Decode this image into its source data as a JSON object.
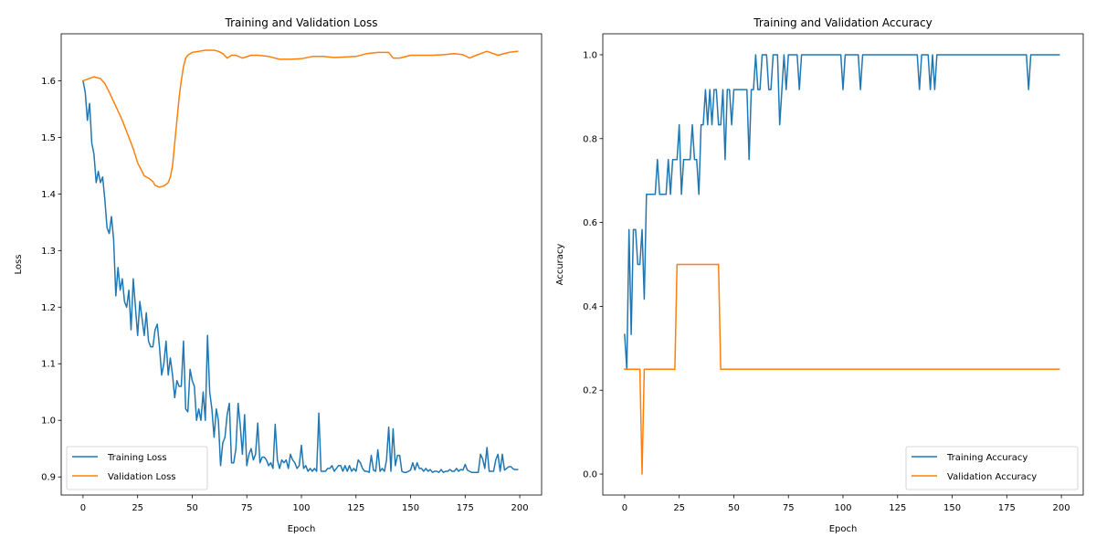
{
  "chart_data": [
    {
      "type": "line",
      "title": "Training and Validation Loss",
      "xlabel": "Epoch",
      "ylabel": "Loss",
      "xlim": [
        -10,
        210
      ],
      "ylim": [
        0.868,
        1.683
      ],
      "xticks": [
        0,
        25,
        50,
        75,
        100,
        125,
        150,
        175,
        200
      ],
      "yticks": [
        0.9,
        1.0,
        1.1,
        1.2,
        1.3,
        1.4,
        1.5,
        1.6
      ],
      "ytick_labels": [
        "0.9",
        "1.0",
        "1.1",
        "1.2",
        "1.3",
        "1.4",
        "1.5",
        "1.6"
      ],
      "grid": false,
      "legend_position": "lower-left",
      "series": [
        {
          "name": "Training Loss",
          "color": "#1f77b4",
          "values": [
            1.6,
            1.58,
            1.53,
            1.56,
            1.49,
            1.47,
            1.42,
            1.44,
            1.42,
            1.43,
            1.39,
            1.34,
            1.33,
            1.36,
            1.32,
            1.22,
            1.27,
            1.23,
            1.25,
            1.21,
            1.2,
            1.23,
            1.16,
            1.25,
            1.2,
            1.15,
            1.21,
            1.18,
            1.15,
            1.19,
            1.14,
            1.13,
            1.13,
            1.16,
            1.17,
            1.13,
            1.08,
            1.1,
            1.14,
            1.08,
            1.11,
            1.08,
            1.04,
            1.07,
            1.06,
            1.06,
            1.14,
            1.02,
            1.015,
            1.09,
            1.07,
            1.06,
            1.0,
            1.02,
            1.0,
            1.05,
            1.0,
            1.15,
            1.05,
            1.02,
            0.97,
            1.02,
            1.0,
            0.92,
            0.96,
            0.97,
            1.01,
            1.03,
            0.925,
            0.925,
            0.95,
            1.03,
            0.99,
            0.94,
            1.01,
            0.92,
            0.94,
            0.95,
            0.93,
            0.94,
            0.995,
            0.925,
            0.935,
            0.935,
            0.93,
            0.92,
            0.925,
            0.915,
            0.993,
            0.93,
            0.915,
            0.93,
            0.925,
            0.93,
            0.915,
            0.94,
            0.93,
            0.925,
            0.915,
            0.92,
            0.956,
            0.915,
            0.92,
            0.91,
            0.915,
            0.91,
            0.915,
            0.91,
            1.013,
            0.91,
            0.91,
            0.91,
            0.915,
            0.915,
            0.92,
            0.91,
            0.915,
            0.92,
            0.92,
            0.91,
            0.92,
            0.91,
            0.92,
            0.91,
            0.915,
            0.91,
            0.93,
            0.925,
            0.915,
            0.91,
            0.91,
            0.908,
            0.938,
            0.912,
            0.91,
            0.948,
            0.91,
            0.915,
            0.91,
            0.93,
            0.988,
            0.91,
            0.985,
            0.92,
            0.938,
            0.938,
            0.91,
            0.908,
            0.908,
            0.91,
            0.912,
            0.925,
            0.912,
            0.925,
            0.915,
            0.915,
            0.91,
            0.915,
            0.91,
            0.913,
            0.908,
            0.91,
            0.91,
            0.908,
            0.913,
            0.908,
            0.91,
            0.91,
            0.913,
            0.91,
            0.91,
            0.915,
            0.91,
            0.913,
            0.912,
            0.922,
            0.912,
            0.91,
            0.908,
            0.908,
            0.908,
            0.908,
            0.94,
            0.932,
            0.915,
            0.952,
            0.91,
            0.91,
            0.91,
            0.93,
            0.94,
            0.91,
            0.94,
            0.912,
            0.915,
            0.918,
            0.918,
            0.914,
            0.913,
            0.913
          ]
        },
        {
          "name": "Validation Loss",
          "color": "#ff7f0e",
          "x": [
            0,
            5,
            8,
            10,
            12,
            15,
            18,
            20,
            23,
            25,
            27,
            28,
            30,
            32,
            33,
            35,
            37,
            39,
            40,
            41,
            42,
            43,
            44,
            45,
            46,
            47,
            48,
            50,
            53,
            56,
            60,
            62,
            64,
            66,
            68,
            70,
            73,
            77,
            80,
            85,
            90,
            95,
            100,
            105,
            110,
            115,
            120,
            125,
            130,
            135,
            140,
            142,
            145,
            150,
            155,
            160,
            165,
            170,
            174,
            177,
            180,
            185,
            190,
            195,
            199
          ],
          "values": [
            1.6,
            1.607,
            1.604,
            1.595,
            1.58,
            1.555,
            1.53,
            1.51,
            1.48,
            1.455,
            1.44,
            1.432,
            1.428,
            1.422,
            1.415,
            1.412,
            1.414,
            1.42,
            1.43,
            1.45,
            1.49,
            1.53,
            1.57,
            1.6,
            1.625,
            1.64,
            1.645,
            1.65,
            1.652,
            1.654,
            1.654,
            1.652,
            1.648,
            1.64,
            1.645,
            1.645,
            1.64,
            1.645,
            1.645,
            1.643,
            1.638,
            1.638,
            1.639,
            1.643,
            1.643,
            1.641,
            1.642,
            1.643,
            1.648,
            1.65,
            1.65,
            1.64,
            1.64,
            1.645,
            1.645,
            1.645,
            1.646,
            1.648,
            1.646,
            1.64,
            1.645,
            1.652,
            1.645,
            1.65,
            1.652
          ]
        }
      ]
    },
    {
      "type": "line",
      "title": "Training and Validation Accuracy",
      "xlabel": "Epoch",
      "ylabel": "Accuracy",
      "xlim": [
        -10,
        210
      ],
      "ylim": [
        -0.05,
        1.05
      ],
      "xticks": [
        0,
        25,
        50,
        75,
        100,
        125,
        150,
        175,
        200
      ],
      "yticks": [
        0.0,
        0.2,
        0.4,
        0.6,
        0.8,
        1.0
      ],
      "ytick_labels": [
        "0.0",
        "0.2",
        "0.4",
        "0.6",
        "0.8",
        "1.0"
      ],
      "grid": false,
      "legend_position": "lower-right",
      "series": [
        {
          "name": "Training Accuracy",
          "color": "#1f77b4",
          "values": [
            0.333,
            0.25,
            0.583,
            0.333,
            0.583,
            0.583,
            0.5,
            0.5,
            0.583,
            0.417,
            0.667,
            0.667,
            0.667,
            0.667,
            0.667,
            0.75,
            0.667,
            0.667,
            0.667,
            0.667,
            0.75,
            0.667,
            0.75,
            0.75,
            0.75,
            0.833,
            0.667,
            0.75,
            0.75,
            0.75,
            0.75,
            0.833,
            0.75,
            0.75,
            0.667,
            0.833,
            0.833,
            0.917,
            0.833,
            0.917,
            0.833,
            0.917,
            0.917,
            0.833,
            0.833,
            0.917,
            0.75,
            0.917,
            0.917,
            0.833,
            0.917,
            0.917,
            0.917,
            0.917,
            0.917,
            0.917,
            0.917,
            0.75,
            0.917,
            0.917,
            1,
            0.917,
            0.917,
            1,
            1,
            1,
            0.917,
            0.917,
            1,
            1,
            1,
            0.833,
            0.917,
            1,
            0.917,
            1,
            1,
            1,
            1,
            1,
            0.917,
            1,
            1,
            1,
            1,
            1,
            1,
            1,
            1,
            1,
            1,
            1,
            1,
            1,
            1,
            1,
            1,
            1,
            1,
            1,
            0.917,
            1,
            1,
            1,
            1,
            1,
            1,
            1,
            0.917,
            1,
            1,
            1,
            1,
            1,
            1,
            1,
            1,
            1,
            1,
            1,
            1,
            1,
            1,
            1,
            1,
            1,
            1,
            1,
            1,
            1,
            1,
            1,
            1,
            1,
            1,
            0.917,
            1,
            1,
            1,
            1,
            0.917,
            1,
            0.917,
            1,
            1,
            1,
            1,
            1,
            1,
            1,
            1,
            1,
            1,
            1,
            1,
            1,
            1,
            1,
            1,
            1,
            1,
            1,
            1,
            1,
            1,
            1,
            1,
            1,
            1,
            1,
            1,
            1,
            1,
            1,
            1,
            1,
            1,
            1,
            1,
            1,
            1,
            1,
            1,
            1,
            1,
            0.917,
            1,
            1,
            1,
            1,
            1,
            1,
            1,
            1,
            1,
            1,
            1,
            1,
            1,
            1
          ]
        },
        {
          "name": "Validation Accuracy",
          "color": "#ff7f0e",
          "values": [
            0.25,
            0.25,
            0.25,
            0.25,
            0.25,
            0.25,
            0.25,
            0.25,
            0,
            0.25,
            0.25,
            0.25,
            0.25,
            0.25,
            0.25,
            0.25,
            0.25,
            0.25,
            0.25,
            0.25,
            0.25,
            0.25,
            0.25,
            0.25,
            0.5,
            0.5,
            0.5,
            0.5,
            0.5,
            0.5,
            0.5,
            0.5,
            0.5,
            0.5,
            0.5,
            0.5,
            0.5,
            0.5,
            0.5,
            0.5,
            0.5,
            0.5,
            0.5,
            0.5,
            0.25,
            0.25,
            0.25,
            0.25,
            0.25,
            0.25,
            0.25,
            0.25,
            0.25,
            0.25,
            0.25,
            0.25,
            0.25,
            0.25,
            0.25,
            0.25,
            0.25,
            0.25,
            0.25,
            0.25,
            0.25,
            0.25,
            0.25,
            0.25,
            0.25,
            0.25,
            0.25,
            0.25,
            0.25,
            0.25,
            0.25,
            0.25,
            0.25,
            0.25,
            0.25,
            0.25,
            0.25,
            0.25,
            0.25,
            0.25,
            0.25,
            0.25,
            0.25,
            0.25,
            0.25,
            0.25,
            0.25,
            0.25,
            0.25,
            0.25,
            0.25,
            0.25,
            0.25,
            0.25,
            0.25,
            0.25,
            0.25,
            0.25,
            0.25,
            0.25,
            0.25,
            0.25,
            0.25,
            0.25,
            0.25,
            0.25,
            0.25,
            0.25,
            0.25,
            0.25,
            0.25,
            0.25,
            0.25,
            0.25,
            0.25,
            0.25,
            0.25,
            0.25,
            0.25,
            0.25,
            0.25,
            0.25,
            0.25,
            0.25,
            0.25,
            0.25,
            0.25,
            0.25,
            0.25,
            0.25,
            0.25,
            0.25,
            0.25,
            0.25,
            0.25,
            0.25,
            0.25,
            0.25,
            0.25,
            0.25,
            0.25,
            0.25,
            0.25,
            0.25,
            0.25,
            0.25,
            0.25,
            0.25,
            0.25,
            0.25,
            0.25,
            0.25,
            0.25,
            0.25,
            0.25,
            0.25,
            0.25,
            0.25,
            0.25,
            0.25,
            0.25,
            0.25,
            0.25,
            0.25,
            0.25,
            0.25,
            0.25,
            0.25,
            0.25,
            0.25,
            0.25,
            0.25,
            0.25,
            0.25,
            0.25,
            0.25,
            0.25,
            0.25,
            0.25,
            0.25,
            0.25,
            0.25,
            0.25,
            0.25,
            0.25,
            0.25,
            0.25,
            0.25,
            0.25,
            0.25,
            0.25,
            0.25,
            0.25,
            0.25,
            0.25,
            0.25
          ]
        }
      ]
    }
  ]
}
